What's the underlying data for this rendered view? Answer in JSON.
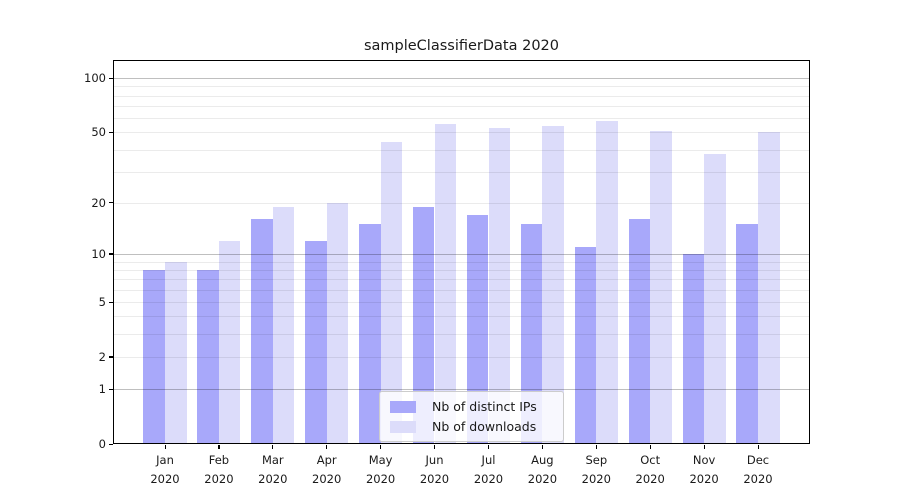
{
  "chart_data": {
    "type": "bar",
    "title": "sampleClassifierData 2020",
    "year_label": "2020",
    "categories": [
      "Jan",
      "Feb",
      "Mar",
      "Apr",
      "May",
      "Jun",
      "Jul",
      "Aug",
      "Sep",
      "Oct",
      "Nov",
      "Dec"
    ],
    "series": [
      {
        "name": "Nb of distinct IPs",
        "color": "#a8a8fa",
        "values": [
          8,
          8,
          16,
          12,
          15,
          19,
          17,
          15,
          11,
          16,
          10,
          15
        ]
      },
      {
        "name": "Nb of downloads",
        "color": "#dcdcfa",
        "values": [
          9,
          12,
          19,
          20,
          44,
          56,
          53,
          54,
          58,
          51,
          38,
          50
        ]
      }
    ],
    "yscale": "symlog-log1p",
    "ylim": [
      0,
      126
    ],
    "yticks": [
      0,
      1,
      2,
      5,
      10,
      20,
      50,
      100
    ],
    "decade_gridlines": [
      1,
      10,
      100
    ],
    "minor_gridlines": [
      2,
      3,
      4,
      5,
      6,
      7,
      8,
      9,
      20,
      30,
      40,
      50,
      60,
      70,
      80,
      90
    ],
    "grid": "both",
    "legend_position": "lower center",
    "xlabel": "",
    "ylabel": ""
  },
  "colors": {
    "background": "#ffffff",
    "bar_ips": "#a8a8fa",
    "bar_downloads": "#dcdcfa",
    "axis": "#000000",
    "legend_border": "#cccccc"
  }
}
